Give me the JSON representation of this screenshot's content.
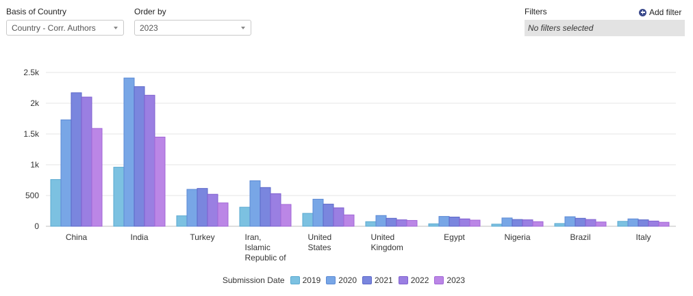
{
  "controls": {
    "basis_label": "Basis of Country",
    "basis_value": "Country - Corr. Authors",
    "order_label": "Order by",
    "order_value": "2023"
  },
  "filters": {
    "label": "Filters",
    "add_label": "Add filter",
    "empty_text": "No filters selected"
  },
  "legend": {
    "title": "Submission Date"
  },
  "chart_data": {
    "type": "bar",
    "categories": [
      "China",
      "India",
      "Turkey",
      "Iran, Islamic Republic of",
      "United States",
      "United Kingdom",
      "Egypt",
      "Nigeria",
      "Brazil",
      "Italy"
    ],
    "category_lines": [
      [
        "China"
      ],
      [
        "India"
      ],
      [
        "Turkey"
      ],
      [
        "Iran,",
        "Islamic",
        "Republic of"
      ],
      [
        "United",
        "States"
      ],
      [
        "United",
        "Kingdom"
      ],
      [
        "Egypt"
      ],
      [
        "Nigeria"
      ],
      [
        "Brazil"
      ],
      [
        "Italy"
      ]
    ],
    "series": [
      {
        "name": "2019",
        "color": "#7cc1e1",
        "stroke": "#5aa9d0",
        "values": [
          760,
          960,
          170,
          310,
          210,
          75,
          40,
          35,
          45,
          80
        ]
      },
      {
        "name": "2020",
        "color": "#78a6e6",
        "stroke": "#5b89d4",
        "values": [
          1730,
          2410,
          600,
          740,
          440,
          175,
          160,
          135,
          155,
          120
        ]
      },
      {
        "name": "2021",
        "color": "#7a86de",
        "stroke": "#5b67c8",
        "values": [
          2170,
          2270,
          615,
          630,
          360,
          130,
          150,
          110,
          130,
          105
        ]
      },
      {
        "name": "2022",
        "color": "#9a7fe2",
        "stroke": "#7f5fcf",
        "values": [
          2100,
          2130,
          520,
          530,
          300,
          105,
          120,
          105,
          110,
          85
        ]
      },
      {
        "name": "2023",
        "color": "#bb86e6",
        "stroke": "#a065d6",
        "values": [
          1590,
          1450,
          380,
          355,
          185,
          95,
          100,
          75,
          70,
          65
        ]
      }
    ],
    "xlabel": "",
    "ylabel": "",
    "ylim": [
      0,
      2500
    ],
    "yticks": [
      0,
      500,
      1000,
      1500,
      2000,
      2500
    ],
    "ytick_labels": [
      "0",
      "500",
      "1k",
      "1.5k",
      "2k",
      "2.5k"
    ],
    "grid": true,
    "legend_position": "bottom"
  }
}
